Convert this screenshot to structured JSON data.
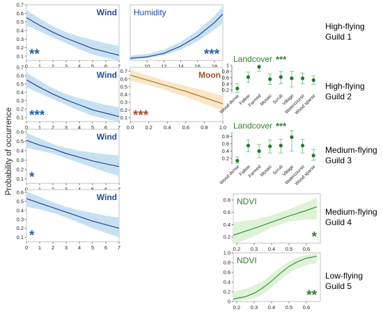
{
  "ylabel": "Probability of occurrence",
  "guilds": [
    {
      "line1": "High-flying",
      "line2": "Guild 1"
    },
    {
      "line1": "High-flying",
      "line2": "Guild 2"
    },
    {
      "line1": "Medium-flying",
      "line2": "Guild 3"
    },
    {
      "line1": "Medium-flying",
      "line2": "Guild 4"
    },
    {
      "line1": "Low-flying",
      "line2": "Guild 5"
    }
  ],
  "colors": {
    "blue_line": "#2d3e8f",
    "blue_band": "#c6e2f2",
    "blue_text": "#1f4e9c",
    "blue_stars": "#1f5fae",
    "orange_line": "#a67c2e",
    "orange_band": "#fbe5c6",
    "orange_text": "#a0522d",
    "green_line": "#2e9a3e",
    "green_band": "#dff2d6",
    "green_text": "#2f7d2f",
    "green_point": "#1f7a2a",
    "green_bar": "#73c48a"
  },
  "chart_data": [
    {
      "id": "wind1",
      "type": "line",
      "title": "Wind",
      "stars": "**",
      "theme": "blue",
      "x": [
        0,
        1,
        2,
        3,
        4,
        5,
        6,
        7
      ],
      "y": [
        0.55,
        0.46,
        0.38,
        0.31,
        0.25,
        0.19,
        0.15,
        0.11
      ],
      "lower": [
        0.46,
        0.39,
        0.32,
        0.25,
        0.18,
        0.12,
        0.08,
        0.05
      ],
      "upper": [
        0.64,
        0.54,
        0.45,
        0.38,
        0.33,
        0.29,
        0.25,
        0.22
      ],
      "xlim": [
        0,
        7
      ],
      "ylim": [
        0.05,
        0.7
      ],
      "xticks": [
        "0",
        "1",
        "2",
        "3",
        "4",
        "5",
        "6",
        "7"
      ],
      "yticks": [
        "0.1",
        "0.2",
        "0.3",
        "0.4",
        "0.5",
        "0.6",
        "0.7"
      ]
    },
    {
      "id": "humidity",
      "type": "line",
      "title": "Humidity",
      "stars": "***",
      "theme": "blue",
      "x": [
        8,
        10,
        12,
        14,
        16,
        18,
        19
      ],
      "y": [
        0.03,
        0.05,
        0.1,
        0.2,
        0.34,
        0.53,
        0.65
      ],
      "lower": [
        0.01,
        0.03,
        0.07,
        0.15,
        0.27,
        0.43,
        0.52
      ],
      "upper": [
        0.07,
        0.09,
        0.15,
        0.26,
        0.42,
        0.62,
        0.76
      ],
      "xlim": [
        8,
        19
      ],
      "ylim": [
        0,
        0.78
      ],
      "xticks": [
        "10",
        "12",
        "14",
        "16",
        "18"
      ],
      "yticks": []
    },
    {
      "id": "wind2",
      "type": "line",
      "title": "Wind",
      "stars": "***",
      "theme": "blue",
      "x": [
        0,
        1,
        2,
        3,
        4,
        5,
        6,
        7
      ],
      "y": [
        0.55,
        0.46,
        0.38,
        0.31,
        0.25,
        0.19,
        0.15,
        0.11
      ],
      "lower": [
        0.46,
        0.39,
        0.32,
        0.25,
        0.18,
        0.12,
        0.08,
        0.05
      ],
      "upper": [
        0.64,
        0.54,
        0.45,
        0.38,
        0.33,
        0.29,
        0.25,
        0.22
      ],
      "xlim": [
        0,
        7
      ],
      "ylim": [
        0.05,
        0.7
      ],
      "xticks": [
        "0",
        "1",
        "2",
        "3",
        "4",
        "5",
        "6",
        "7"
      ],
      "yticks": [
        "0.1",
        "0.2",
        "0.3",
        "0.4",
        "0.5",
        "0.6",
        "0.7"
      ]
    },
    {
      "id": "moon",
      "type": "line",
      "title": "Moon",
      "stars": "***",
      "theme": "orange",
      "x": [
        0,
        0.2,
        0.4,
        0.6,
        0.8,
        1.0
      ],
      "y": [
        0.65,
        0.58,
        0.51,
        0.44,
        0.36,
        0.28
      ],
      "lower": [
        0.58,
        0.52,
        0.45,
        0.37,
        0.28,
        0.19
      ],
      "upper": [
        0.72,
        0.64,
        0.57,
        0.51,
        0.45,
        0.38
      ],
      "xlim": [
        0,
        1
      ],
      "ylim": [
        0.05,
        0.75
      ],
      "xticks": [
        "0.0",
        "0.2",
        "0.4",
        "0.6",
        "0.8",
        "1.0"
      ],
      "yticks": [
        "0.1",
        "0.2",
        "0.3",
        "0.4",
        "0.5",
        "0.6",
        "0.7"
      ]
    },
    {
      "id": "wind3",
      "type": "line",
      "title": "Wind",
      "stars": "*",
      "theme": "blue",
      "x": [
        0,
        1,
        2,
        3,
        4,
        5,
        6,
        7
      ],
      "y": [
        0.51,
        0.46,
        0.42,
        0.37,
        0.33,
        0.29,
        0.26,
        0.23
      ],
      "lower": [
        0.43,
        0.4,
        0.37,
        0.32,
        0.27,
        0.22,
        0.17,
        0.13
      ],
      "upper": [
        0.59,
        0.53,
        0.47,
        0.43,
        0.4,
        0.38,
        0.36,
        0.35
      ],
      "xlim": [
        0,
        7
      ],
      "ylim": [
        0.05,
        0.63
      ],
      "xticks": [
        "0",
        "1",
        "2",
        "3",
        "4",
        "5",
        "6",
        "7"
      ],
      "yticks": [
        "0.1",
        "0.2",
        "0.3",
        "0.4",
        "0.5",
        "0.6"
      ]
    },
    {
      "id": "wind4",
      "type": "line",
      "title": "Wind",
      "stars": "*",
      "theme": "blue",
      "x": [
        0,
        1,
        2,
        3,
        4,
        5,
        6,
        7
      ],
      "y": [
        0.53,
        0.48,
        0.43,
        0.38,
        0.33,
        0.28,
        0.24,
        0.2
      ],
      "lower": [
        0.44,
        0.41,
        0.37,
        0.32,
        0.26,
        0.2,
        0.15,
        0.1
      ],
      "upper": [
        0.61,
        0.55,
        0.49,
        0.44,
        0.4,
        0.37,
        0.34,
        0.32
      ],
      "xlim": [
        0,
        7
      ],
      "ylim": [
        0.05,
        0.63
      ],
      "xticks": [
        "0",
        "1",
        "2",
        "3",
        "4",
        "5",
        "6",
        "7"
      ],
      "yticks": [
        "0.1",
        "0.2",
        "0.3",
        "0.4",
        "0.5",
        "0.6"
      ]
    },
    {
      "id": "landcover2",
      "type": "scatter",
      "title": "Landcover",
      "stars": "***",
      "theme": "green",
      "categories": [
        "Wood dense",
        "Fallow",
        "Farmed",
        "Mosaic",
        "Scrub",
        "Village",
        "Watercourse",
        "Wood sparse"
      ],
      "values": [
        0.25,
        0.62,
        0.95,
        0.55,
        0.62,
        0.58,
        0.58,
        0.52
      ],
      "lower": [
        0.12,
        0.45,
        0.8,
        0.38,
        0.4,
        0.3,
        0.4,
        0.38
      ],
      "upper": [
        0.4,
        0.78,
        1.0,
        0.72,
        0.8,
        0.8,
        0.75,
        0.66
      ],
      "ylim": [
        0.1,
        1.0
      ],
      "yticks": [
        "0.2",
        "0.4",
        "0.6",
        "0.8",
        "1"
      ]
    },
    {
      "id": "landcover3",
      "type": "scatter",
      "title": "Landcover",
      "stars": "***",
      "theme": "green",
      "categories": [
        "Wood dense",
        "Fallow",
        "Farmed",
        "Mosaic",
        "Scrub",
        "Village",
        "Watercourse",
        "Wood sparse"
      ],
      "values": [
        0.14,
        0.55,
        0.4,
        0.53,
        0.55,
        0.78,
        0.55,
        0.28
      ],
      "lower": [
        0.07,
        0.38,
        0.22,
        0.35,
        0.35,
        0.4,
        0.35,
        0.15
      ],
      "upper": [
        0.24,
        0.7,
        0.58,
        0.7,
        0.72,
        0.95,
        0.72,
        0.45
      ],
      "ylim": [
        0.05,
        0.92
      ],
      "yticks": [
        "0.2",
        "0.4",
        "0.6",
        "0.8"
      ]
    },
    {
      "id": "ndvi4",
      "type": "line",
      "title": "NDVI",
      "stars": "*",
      "theme": "green",
      "x": [
        0.18,
        0.3,
        0.4,
        0.5,
        0.6,
        0.66
      ],
      "y": [
        0.23,
        0.34,
        0.44,
        0.54,
        0.63,
        0.69
      ],
      "lower": [
        0.08,
        0.21,
        0.35,
        0.45,
        0.48,
        0.49
      ],
      "upper": [
        0.44,
        0.48,
        0.55,
        0.65,
        0.76,
        0.84
      ],
      "xlim": [
        0.18,
        0.68
      ],
      "ylim": [
        0.1,
        0.9
      ],
      "xticks": [
        "0.2",
        "0.3",
        "0.4",
        "0.5",
        "0.6"
      ],
      "yticks": [
        "0.2",
        "0.4",
        "0.6",
        "0.8"
      ]
    },
    {
      "id": "ndvi5",
      "type": "line",
      "title": "NDVI",
      "stars": "**",
      "theme": "green",
      "x": [
        0.18,
        0.25,
        0.3,
        0.35,
        0.4,
        0.45,
        0.5,
        0.55,
        0.6,
        0.66
      ],
      "y": [
        0.05,
        0.1,
        0.17,
        0.28,
        0.42,
        0.58,
        0.72,
        0.82,
        0.89,
        0.93
      ],
      "lower": [
        0.01,
        0.03,
        0.07,
        0.15,
        0.28,
        0.45,
        0.58,
        0.68,
        0.75,
        0.79
      ],
      "upper": [
        0.2,
        0.26,
        0.33,
        0.42,
        0.56,
        0.7,
        0.82,
        0.91,
        0.96,
        0.98
      ],
      "xlim": [
        0.18,
        0.68
      ],
      "ylim": [
        0,
        1.0
      ],
      "xticks": [
        "0.2",
        "0.3",
        "0.4",
        "0.5",
        "0.6"
      ],
      "yticks": [
        "0",
        "0.2",
        "0.4",
        "0.6",
        "0.8",
        "1.0"
      ]
    }
  ]
}
